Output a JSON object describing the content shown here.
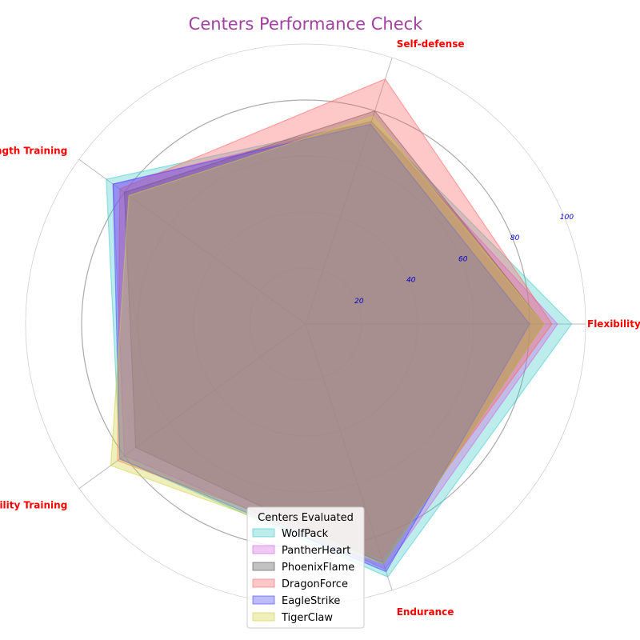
{
  "chart_data": {
    "type": "radar",
    "title": "Centers Performance Check",
    "axes": [
      "Flexibility",
      "Self-defense",
      "Strength Training",
      "Agility Training",
      "Endurance"
    ],
    "r_ticks": [
      "20",
      "40",
      "60",
      "80",
      "100"
    ],
    "rlim": [
      0,
      100
    ],
    "grid": true,
    "legend": {
      "title": "Centers Evaluated",
      "placement": "bottom-center"
    },
    "series": [
      {
        "name": "WolfPack",
        "values": [
          95,
          76,
          88,
          82,
          95
        ],
        "color": "#40c8c8"
      },
      {
        "name": "PantherHeart",
        "values": [
          90,
          76,
          85,
          80,
          92
        ],
        "color": "#d060e0"
      },
      {
        "name": "PhoenixFlame",
        "values": [
          85,
          80,
          80,
          75,
          90
        ],
        "color": "#505050"
      },
      {
        "name": "DragonForce",
        "values": [
          88,
          92,
          82,
          83,
          88
        ],
        "color": "#ff6060"
      },
      {
        "name": "EagleStrike",
        "values": [
          80,
          75,
          85,
          82,
          93
        ],
        "color": "#4040ff"
      },
      {
        "name": "TigerClaw",
        "values": [
          85,
          78,
          78,
          86,
          90
        ],
        "color": "#d0d040"
      }
    ]
  }
}
